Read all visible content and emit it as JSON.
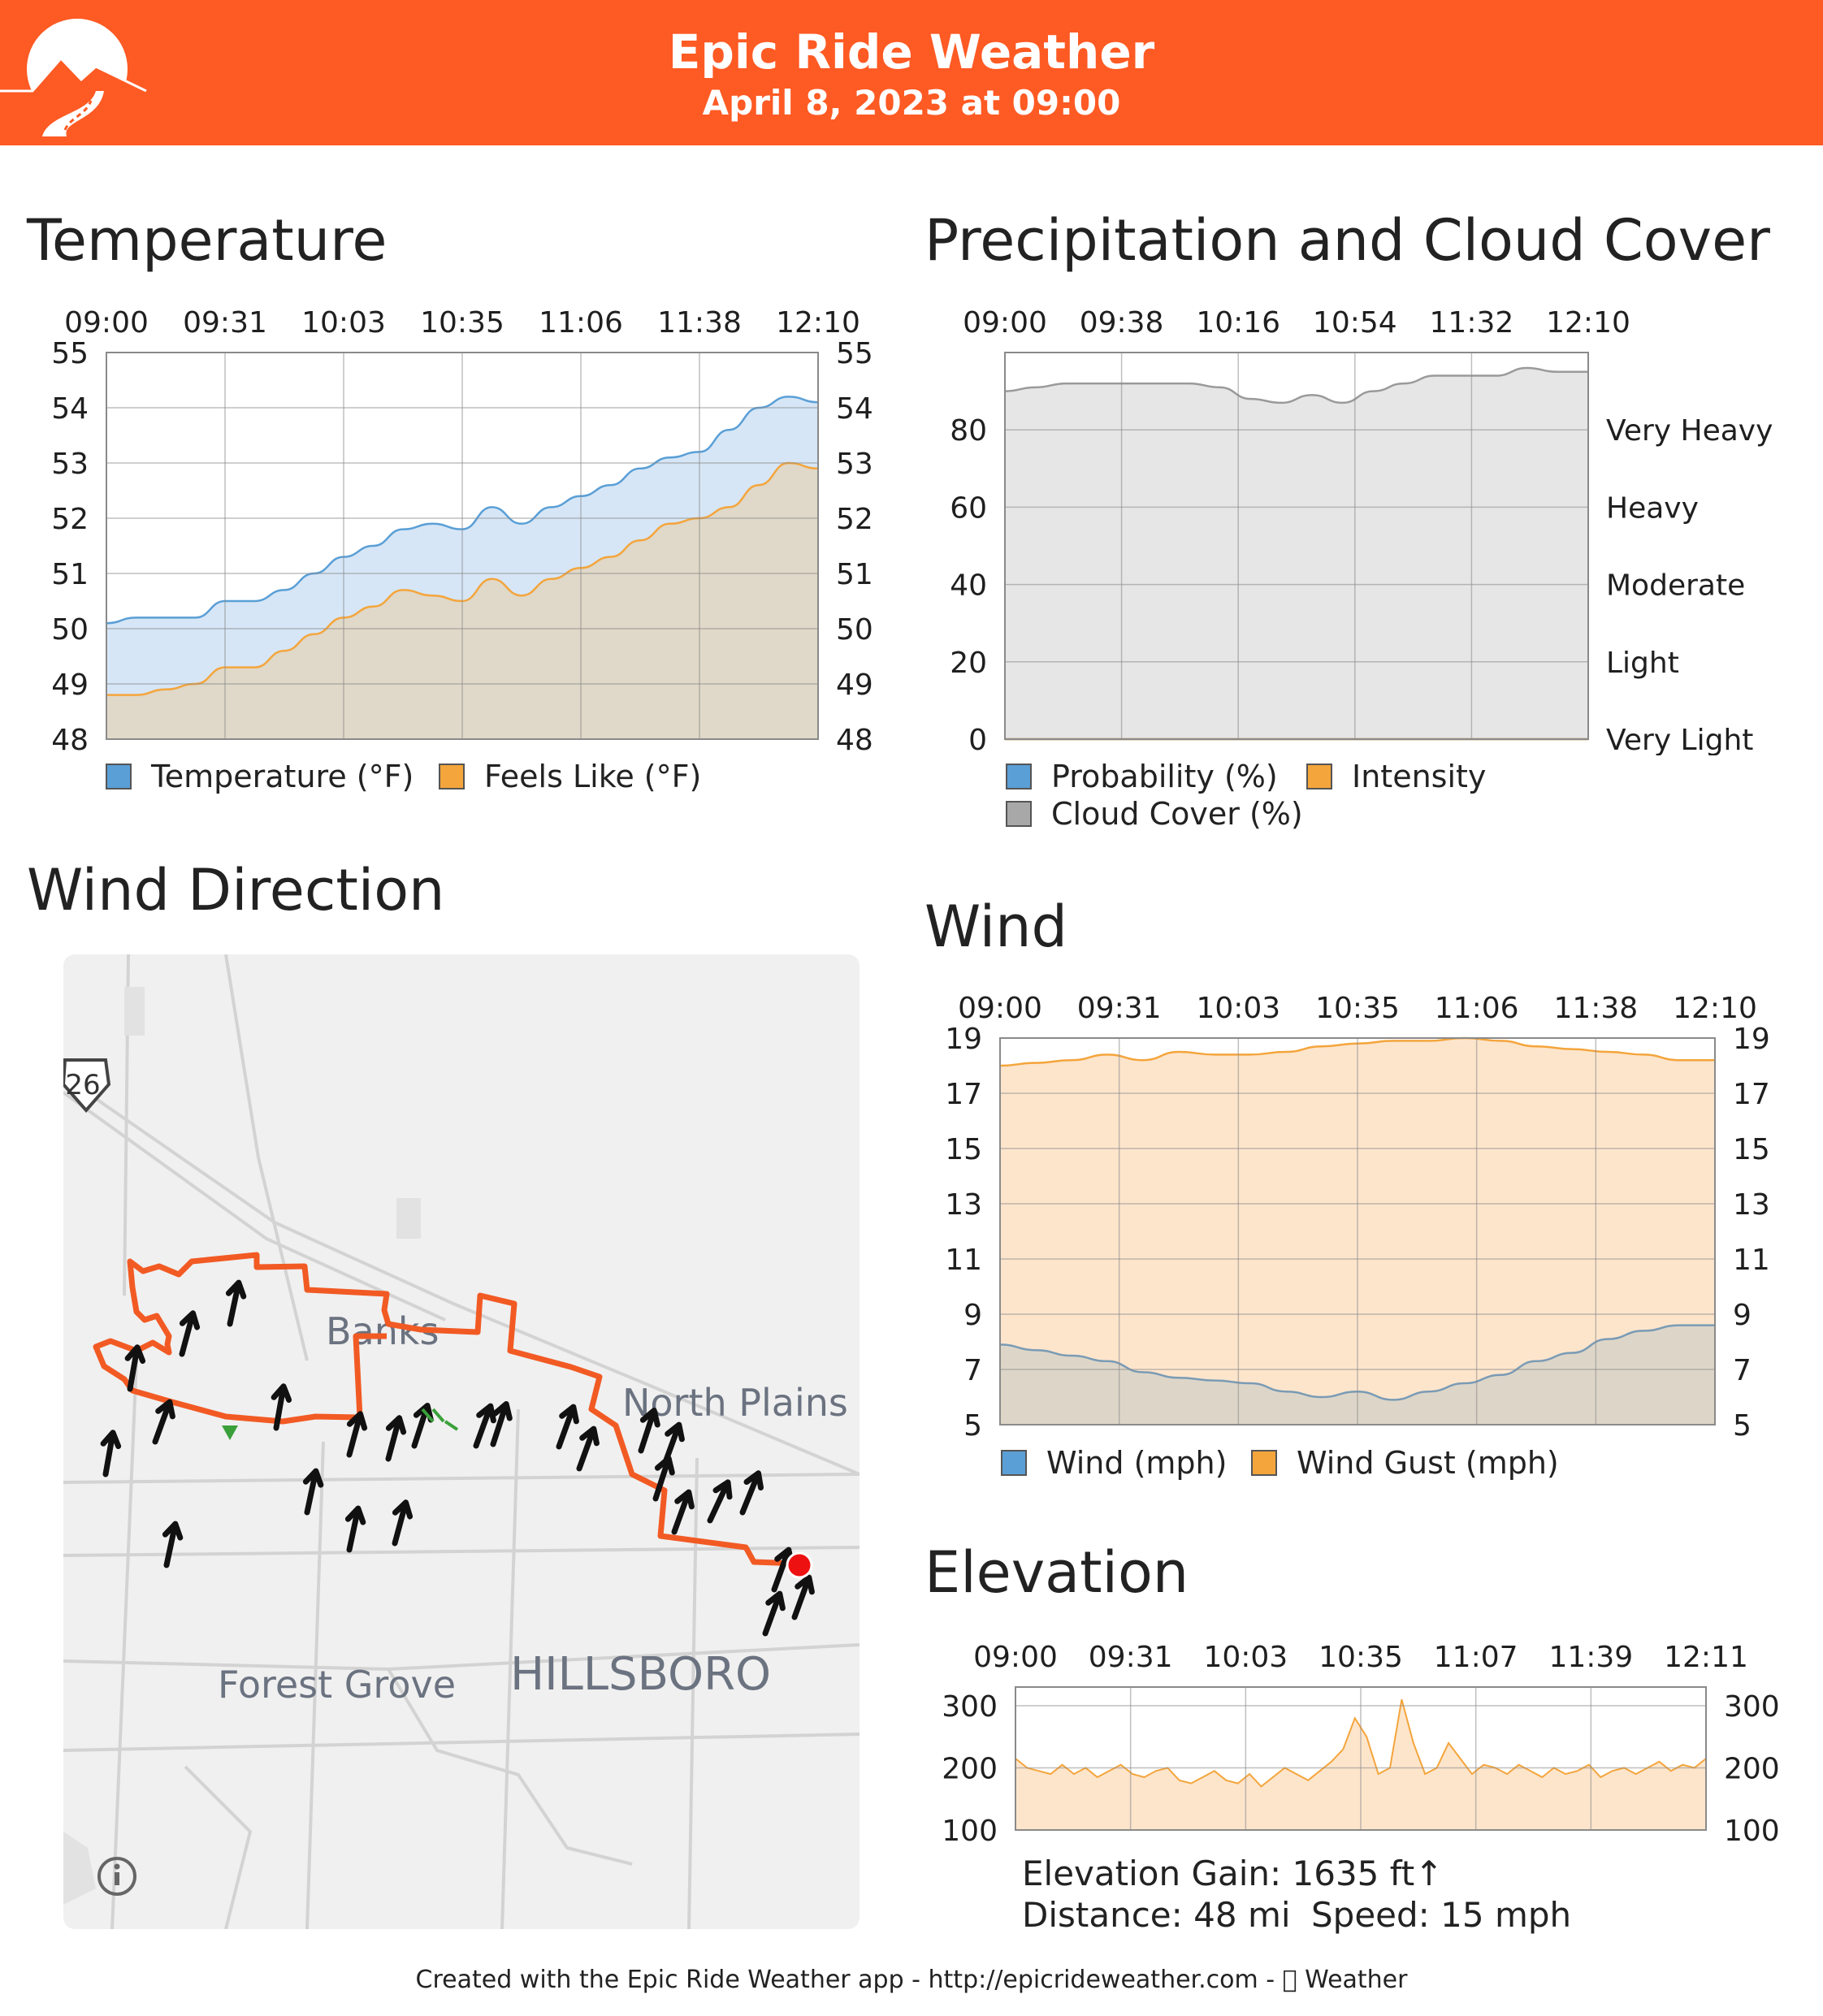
{
  "header": {
    "title": "Epic Ride Weather",
    "date": "April 8, 2023 at 09:00",
    "brand_color": "#fe5a23"
  },
  "temperature": {
    "title": "Temperature",
    "legend": [
      "Temperature (°F)",
      "Feels Like (°F)"
    ]
  },
  "precip": {
    "title": "Precipitation and Cloud Cover",
    "legend": [
      "Probability (%)",
      "Intensity",
      "Cloud Cover (%)"
    ]
  },
  "wind_direction": {
    "title": "Wind Direction",
    "labels": [
      "Banks",
      "North Plains",
      "Forest Grove",
      "HILLSBORO"
    ],
    "highway_shield": "26",
    "info_icon": "info-icon"
  },
  "wind": {
    "title": "Wind",
    "legend": [
      "Wind (mph)",
      "Wind Gust (mph)"
    ]
  },
  "elevation": {
    "title": "Elevation",
    "gain_text": "Elevation Gain: 1635 ft↑",
    "distance_text": "Distance: 48 mi",
    "speed_text": "Speed: 15 mph"
  },
  "footer": {
    "text": "Created with the Epic Ride Weather app - http://epicrideweather.com -  Weather"
  },
  "chart_data": [
    {
      "id": "temperature",
      "type": "area",
      "x_ticks": [
        "09:00",
        "09:31",
        "10:03",
        "10:35",
        "11:06",
        "11:38",
        "12:10"
      ],
      "ylim": [
        48,
        55
      ],
      "y_ticks": [
        48,
        49,
        50,
        51,
        52,
        53,
        54,
        55
      ],
      "grid": true,
      "legend_position": "bottom",
      "series": [
        {
          "name": "Temperature (°F)",
          "color": "#5a9fd6",
          "fill": "#d6e6f6",
          "values": [
            50.1,
            50.2,
            50.2,
            50.2,
            50.5,
            50.5,
            50.7,
            51.0,
            51.3,
            51.5,
            51.8,
            51.9,
            51.8,
            52.2,
            51.9,
            52.2,
            52.4,
            52.6,
            52.9,
            53.1,
            53.2,
            53.6,
            54.0,
            54.2,
            54.1
          ]
        },
        {
          "name": "Feels Like (°F)",
          "color": "#f4a53c",
          "fill": "#e0d8c8",
          "values": [
            48.8,
            48.8,
            48.9,
            49.0,
            49.3,
            49.3,
            49.6,
            49.9,
            50.2,
            50.4,
            50.7,
            50.6,
            50.5,
            50.9,
            50.6,
            50.9,
            51.1,
            51.3,
            51.6,
            51.9,
            52.0,
            52.2,
            52.6,
            53.0,
            52.9
          ]
        }
      ]
    },
    {
      "id": "precipitation",
      "type": "area",
      "x_ticks": [
        "09:00",
        "09:38",
        "10:16",
        "10:54",
        "11:32",
        "12:10"
      ],
      "ylim": [
        0,
        100
      ],
      "y_ticks": [
        0,
        20,
        40,
        60,
        80
      ],
      "right_labels": [
        "Very Light",
        "Light",
        "Moderate",
        "Heavy",
        "Very Heavy"
      ],
      "grid": true,
      "legend_position": "bottom",
      "series": [
        {
          "name": "Cloud Cover (%)",
          "color": "#9a9a9a",
          "fill": "#e6e6e6",
          "values": [
            90,
            91,
            92,
            92,
            92,
            92,
            92,
            91,
            88,
            87,
            89,
            87,
            90,
            92,
            94,
            94,
            94,
            96,
            95,
            95
          ]
        },
        {
          "name": "Probability (%)",
          "color": "#5a9fd6",
          "values": [
            0,
            0,
            0,
            0,
            0,
            0,
            0,
            0,
            0,
            0,
            0,
            0,
            0,
            0,
            0,
            0,
            0,
            0,
            0,
            0
          ]
        },
        {
          "name": "Intensity",
          "color": "#f4a53c",
          "values": [
            0,
            0,
            0,
            0,
            0,
            0,
            0,
            0,
            0,
            0,
            0,
            0,
            0,
            0,
            0,
            0,
            0,
            0,
            0,
            0
          ]
        }
      ]
    },
    {
      "id": "wind",
      "type": "area",
      "x_ticks": [
        "09:00",
        "09:31",
        "10:03",
        "10:35",
        "11:06",
        "11:38",
        "12:10"
      ],
      "ylim": [
        5,
        19
      ],
      "y_ticks": [
        5,
        7,
        9,
        11,
        13,
        15,
        17,
        19
      ],
      "grid": true,
      "legend_position": "bottom",
      "series": [
        {
          "name": "Wind Gust (mph)",
          "color": "#f4a53c",
          "fill": "#fde5cc",
          "values": [
            18.0,
            18.1,
            18.2,
            18.4,
            18.2,
            18.5,
            18.4,
            18.4,
            18.5,
            18.7,
            18.8,
            18.9,
            18.9,
            19.0,
            18.9,
            18.7,
            18.6,
            18.5,
            18.4,
            18.2,
            18.2
          ]
        },
        {
          "name": "Wind (mph)",
          "color": "#7a9bb5",
          "fill": "#ddd6c8",
          "values": [
            7.9,
            7.7,
            7.5,
            7.3,
            6.9,
            6.7,
            6.6,
            6.5,
            6.2,
            6.0,
            6.2,
            5.9,
            6.2,
            6.5,
            6.8,
            7.3,
            7.6,
            8.1,
            8.4,
            8.6,
            8.6
          ]
        }
      ]
    },
    {
      "id": "elevation",
      "type": "area",
      "x_ticks": [
        "09:00",
        "09:31",
        "10:03",
        "10:35",
        "11:07",
        "11:39",
        "12:11"
      ],
      "ylim": [
        100,
        330
      ],
      "y_ticks": [
        100,
        200,
        300
      ],
      "grid": true,
      "series": [
        {
          "name": "",
          "color": "#f4a53c",
          "fill": "#fde5cc",
          "values": [
            215,
            200,
            195,
            190,
            205,
            190,
            200,
            185,
            195,
            205,
            190,
            185,
            195,
            200,
            180,
            175,
            185,
            195,
            180,
            175,
            190,
            170,
            185,
            200,
            190,
            180,
            195,
            210,
            230,
            280,
            250,
            190,
            200,
            310,
            240,
            190,
            200,
            240,
            215,
            190,
            205,
            200,
            190,
            205,
            195,
            185,
            200,
            190,
            195,
            205,
            185,
            195,
            200,
            190,
            200,
            210,
            195,
            205,
            200,
            215
          ]
        }
      ]
    }
  ]
}
